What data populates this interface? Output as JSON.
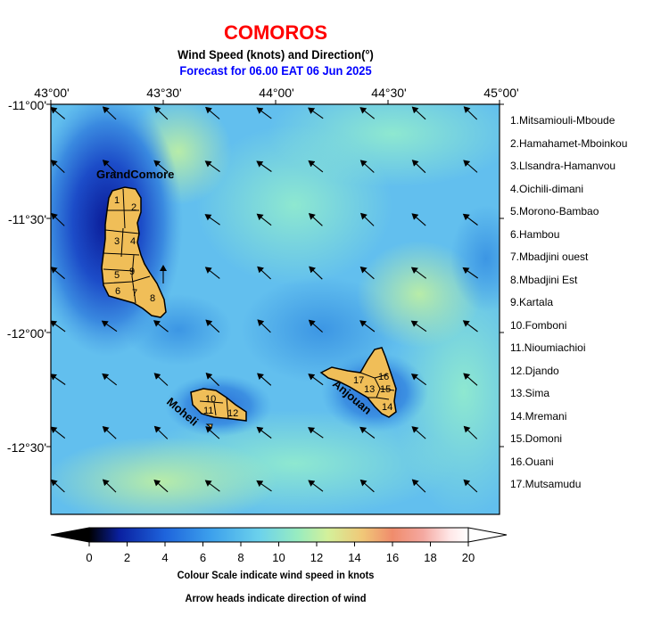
{
  "header": {
    "title": "COMOROS",
    "subtitle": "Wind Speed (knots) and Direction(°)",
    "forecast": "Forecast for  06.00 EAT 06 Jun 2025"
  },
  "axes": {
    "longitudes": [
      "43°00'",
      "43°30'",
      "44°00'",
      "44°30'",
      "45°00'"
    ],
    "latitudes": [
      "-11°00'",
      "-11°30'",
      "-12°00'",
      "-12°30'"
    ]
  },
  "islands": {
    "grand_comore": "GrandComore",
    "moheli": "Moheli",
    "anjouan": "Anjouan"
  },
  "region_numbers": [
    "1",
    "2",
    "3",
    "4",
    "5",
    "6",
    "7",
    "8",
    "9",
    "10",
    "11",
    "12",
    "13",
    "14",
    "15",
    "16",
    "17"
  ],
  "legend": [
    "1.Mitsamiouli-Mboude",
    "2.Hamahamet-Mboinkou",
    "3.Llsandra-Hamanvou",
    "4.Oichili-dimani",
    "5.Morono-Bambao",
    "6.Hambou",
    "7.Mbadjini ouest",
    "8.Mbadjini Est",
    "9.Kartala",
    "10.Fomboni",
    "11.Nioumiachioi",
    "12.Djando",
    "13.Sima",
    "14.Mremani",
    "15.Domoni",
    "16.Ouani",
    "17.Mutsamudu"
  ],
  "colorbar": {
    "ticks": [
      "0",
      "2",
      "4",
      "6",
      "8",
      "10",
      "12",
      "14",
      "16",
      "18",
      "20"
    ],
    "caption1": "Colour Scale indicate wind speed in knots",
    "caption2": "Arrow heads indicate direction of wind",
    "colors": [
      "#000000",
      "#0a1f9e",
      "#1e5fd8",
      "#3c9ae8",
      "#66c8f0",
      "#8ee8c8",
      "#c8f0a0",
      "#f0c878",
      "#f09070",
      "#f0a8a0",
      "#ffe0e0",
      "#ffffff"
    ]
  },
  "wind": {
    "prevailing_direction": "from southeast (arrows point northwest)",
    "speed_range_knots": [
      2,
      12
    ]
  }
}
